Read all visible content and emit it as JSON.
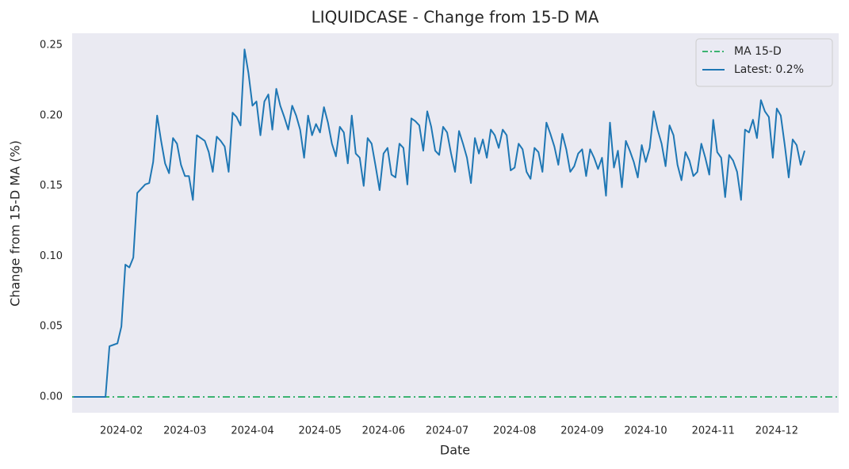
{
  "chart_data": {
    "type": "line",
    "title": "LIQUIDCASE - Change from 15-D MA",
    "xlabel": "Date",
    "ylabel": "Change from 15-D MA (%)",
    "categories": [
      null,
      null,
      null,
      null,
      null,
      null,
      null,
      null,
      null,
      null,
      null,
      null,
      "2024-02",
      null,
      null,
      null,
      null,
      null,
      null,
      null,
      null,
      null,
      null,
      null,
      null,
      null,
      null,
      null,
      "2024-03",
      null,
      null,
      null,
      null,
      null,
      null,
      null,
      null,
      null,
      null,
      null,
      null,
      null,
      null,
      null,
      null,
      "2024-04",
      null,
      null,
      null,
      null,
      null,
      null,
      null,
      null,
      null,
      null,
      null,
      null,
      null,
      null,
      null,
      null,
      "2024-05",
      null,
      null,
      null,
      null,
      null,
      null,
      null,
      null,
      null,
      null,
      null,
      null,
      null,
      null,
      null,
      "2024-06",
      null,
      null,
      null,
      null,
      null,
      null,
      null,
      null,
      null,
      null,
      null,
      null,
      null,
      null,
      null,
      "2024-07",
      null,
      null,
      null,
      null,
      null,
      null,
      null,
      null,
      null,
      null,
      null,
      null,
      null,
      null,
      null,
      null,
      "2024-08",
      null,
      null,
      null,
      null,
      null,
      null,
      null,
      null,
      null,
      null,
      null,
      null,
      null,
      null,
      null,
      null,
      "2024-09",
      null,
      null,
      null,
      null,
      null,
      null,
      null,
      null,
      null,
      null,
      null,
      null,
      null,
      null,
      null,
      "2024-10",
      null,
      null,
      null,
      null,
      null,
      null,
      null,
      null,
      null,
      null,
      null,
      null,
      null,
      null,
      null,
      null,
      "2024-11",
      null,
      null,
      null,
      null,
      null,
      null,
      null,
      null,
      null,
      null,
      null,
      null,
      null,
      null,
      null,
      "2024-12",
      null,
      null,
      null,
      null,
      null,
      null,
      null
    ],
    "series": [
      {
        "name": "Latest: 0.2%",
        "color": "#1f77b4",
        "values": [
          0,
          0,
          0,
          0,
          0,
          0,
          0,
          0,
          0,
          0.036,
          0.037,
          0.038,
          0.05,
          0.094,
          0.092,
          0.099,
          0.145,
          0.148,
          0.151,
          0.152,
          0.167,
          0.2,
          0.182,
          0.166,
          0.159,
          0.184,
          0.18,
          0.165,
          0.157,
          0.157,
          0.14,
          0.186,
          0.184,
          0.182,
          0.174,
          0.16,
          0.185,
          0.182,
          0.178,
          0.16,
          0.202,
          0.199,
          0.193,
          0.247,
          0.23,
          0.207,
          0.21,
          0.186,
          0.21,
          0.215,
          0.19,
          0.219,
          0.207,
          0.199,
          0.19,
          0.207,
          0.2,
          0.19,
          0.17,
          0.2,
          0.186,
          0.194,
          0.188,
          0.206,
          0.195,
          0.18,
          0.171,
          0.192,
          0.188,
          0.166,
          0.2,
          0.173,
          0.17,
          0.15,
          0.184,
          0.18,
          0.164,
          0.147,
          0.173,
          0.177,
          0.158,
          0.156,
          0.18,
          0.177,
          0.151,
          0.198,
          0.196,
          0.193,
          0.175,
          0.203,
          0.192,
          0.175,
          0.172,
          0.192,
          0.188,
          0.173,
          0.16,
          0.189,
          0.18,
          0.17,
          0.152,
          0.184,
          0.173,
          0.183,
          0.17,
          0.19,
          0.186,
          0.177,
          0.19,
          0.186,
          0.161,
          0.163,
          0.18,
          0.176,
          0.16,
          0.155,
          0.177,
          0.174,
          0.16,
          0.195,
          0.187,
          0.178,
          0.165,
          0.187,
          0.176,
          0.16,
          0.164,
          0.173,
          0.176,
          0.157,
          0.176,
          0.17,
          0.162,
          0.17,
          0.143,
          0.195,
          0.163,
          0.175,
          0.149,
          0.182,
          0.175,
          0.167,
          0.156,
          0.179,
          0.167,
          0.177,
          0.203,
          0.19,
          0.18,
          0.164,
          0.193,
          0.186,
          0.165,
          0.154,
          0.174,
          0.168,
          0.157,
          0.16,
          0.18,
          0.17,
          0.158,
          0.197,
          0.174,
          0.17,
          0.142,
          0.172,
          0.168,
          0.16,
          0.14,
          0.19,
          0.188,
          0.197,
          0.184,
          0.211,
          0.203,
          0.199,
          0.17,
          0.205,
          0.2,
          0.179,
          0.156,
          0.183,
          0.179,
          0.165,
          0.175
        ]
      }
    ],
    "reference_line": {
      "name": "MA 15-D",
      "value": 0,
      "color": "#3cb371"
    },
    "ylim": [
      -0.0113,
      0.2585
    ],
    "yticks": [
      {
        "value": 0,
        "label": "0.00"
      },
      {
        "value": 0.05,
        "label": "0.05"
      },
      {
        "value": 0.1,
        "label": "0.10"
      },
      {
        "value": 0.15,
        "label": "0.15"
      },
      {
        "value": 0.2,
        "label": "0.20"
      },
      {
        "value": 0.25,
        "label": "0.25"
      }
    ],
    "grid": false,
    "legend": "upper right"
  }
}
